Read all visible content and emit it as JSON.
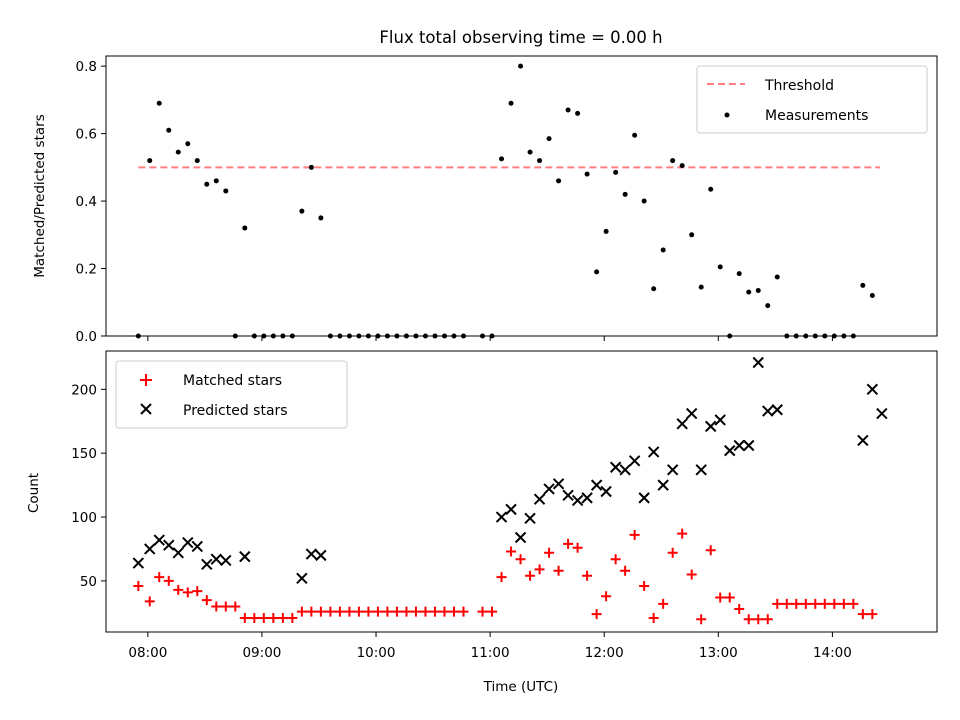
{
  "figure": {
    "title": "Flux total observing time = 0.00 h"
  },
  "chart_data": [
    {
      "type": "scatter",
      "ylabel": "Matched/Predicted stars",
      "xlabel": "",
      "x_unit": "hours UTC",
      "xlim": [
        "07:38",
        "14:55"
      ],
      "ylim": [
        0,
        0.83
      ],
      "y_ticks": [
        0.0,
        0.2,
        0.4,
        0.6,
        0.8
      ],
      "y_tick_labels": [
        "0.0",
        "0.2",
        "0.4",
        "0.6",
        "0.8"
      ],
      "legend_position": "top-right",
      "grid": false,
      "threshold": {
        "name": "Threshold",
        "color": "#ff7f7f",
        "style": "dashed",
        "y": 0.5,
        "x_start": "07:55",
        "x_end": "14:25"
      },
      "series": [
        {
          "name": "Measurements",
          "color": "#000000",
          "marker": "dot",
          "x": [
            "07:55",
            "08:01",
            "08:06",
            "08:11",
            "08:16",
            "08:21",
            "08:26",
            "08:31",
            "08:36",
            "08:41",
            "08:46",
            "08:51",
            "08:56",
            "09:01",
            "09:06",
            "09:11",
            "09:16",
            "09:21",
            "09:26",
            "09:31",
            "09:36",
            "09:41",
            "09:46",
            "09:51",
            "09:56",
            "10:01",
            "10:06",
            "10:11",
            "10:16",
            "10:21",
            "10:26",
            "10:31",
            "10:36",
            "10:41",
            "10:46",
            "10:56",
            "11:01",
            "11:06",
            "11:11",
            "11:16",
            "11:21",
            "11:26",
            "11:31",
            "11:36",
            "11:41",
            "11:46",
            "11:51",
            "11:56",
            "12:01",
            "12:06",
            "12:11",
            "12:16",
            "12:21",
            "12:26",
            "12:31",
            "12:36",
            "12:41",
            "12:46",
            "12:51",
            "12:56",
            "13:01",
            "13:06",
            "13:11",
            "13:16",
            "13:21",
            "13:26",
            "13:31",
            "13:36",
            "13:41",
            "13:46",
            "13:51",
            "13:56",
            "14:01",
            "14:06",
            "14:11",
            "14:16",
            "14:21"
          ],
          "y": [
            0.0,
            0.52,
            0.69,
            0.61,
            0.545,
            0.57,
            0.52,
            0.45,
            0.46,
            0.43,
            0.0,
            0.32,
            0.0,
            0.0,
            0.0,
            0.0,
            0.0,
            0.37,
            0.5,
            0.35,
            0.0,
            0.0,
            0.0,
            0.0,
            0.0,
            0.0,
            0.0,
            0.0,
            0.0,
            0.0,
            0.0,
            0.0,
            0.0,
            0.0,
            0.0,
            0.0,
            0.0,
            0.525,
            0.69,
            0.8,
            0.545,
            0.52,
            0.585,
            0.46,
            0.67,
            0.66,
            0.48,
            0.19,
            0.31,
            0.485,
            0.42,
            0.595,
            0.4,
            0.14,
            0.255,
            0.52,
            0.505,
            0.3,
            0.145,
            0.435,
            0.205,
            0.0,
            0.185,
            0.13,
            0.135,
            0.09,
            0.175,
            0.0,
            0.0,
            0.0,
            0.0,
            0.0,
            0.0,
            0.0,
            0.0,
            0.15,
            0.12
          ]
        }
      ]
    },
    {
      "type": "scatter",
      "xlabel": "Time (UTC)",
      "ylabel": "Count",
      "x_unit": "hours UTC",
      "xlim": [
        "07:38",
        "14:55"
      ],
      "ylim": [
        10,
        230
      ],
      "x_ticks": [
        "08:00",
        "09:00",
        "10:00",
        "11:00",
        "12:00",
        "13:00",
        "14:00"
      ],
      "x_tick_labels": [
        "08:00",
        "09:00",
        "10:00",
        "11:00",
        "12:00",
        "13:00",
        "14:00"
      ],
      "y_ticks": [
        50,
        100,
        150,
        200
      ],
      "y_tick_labels": [
        "50",
        "100",
        "150",
        "200"
      ],
      "legend_position": "top-left",
      "grid": false,
      "series": [
        {
          "name": "Matched stars",
          "color": "#ff0000",
          "marker": "plus",
          "x": [
            "07:55",
            "08:01",
            "08:06",
            "08:11",
            "08:16",
            "08:21",
            "08:26",
            "08:31",
            "08:36",
            "08:41",
            "08:46",
            "08:51",
            "08:56",
            "09:01",
            "09:06",
            "09:11",
            "09:16",
            "09:21",
            "09:26",
            "09:31",
            "09:36",
            "09:41",
            "09:46",
            "09:51",
            "09:56",
            "10:01",
            "10:06",
            "10:11",
            "10:16",
            "10:21",
            "10:26",
            "10:31",
            "10:36",
            "10:41",
            "10:46",
            "10:56",
            "11:01",
            "11:06",
            "11:11",
            "11:16",
            "11:21",
            "11:26",
            "11:31",
            "11:36",
            "11:41",
            "11:46",
            "11:51",
            "11:56",
            "12:01",
            "12:06",
            "12:11",
            "12:16",
            "12:21",
            "12:26",
            "12:31",
            "12:36",
            "12:41",
            "12:46",
            "12:51",
            "12:56",
            "13:01",
            "13:06",
            "13:11",
            "13:16",
            "13:21",
            "13:26",
            "13:31",
            "13:36",
            "13:41",
            "13:46",
            "13:51",
            "13:56",
            "14:01",
            "14:06",
            "14:11",
            "14:16",
            "14:21"
          ],
          "y": [
            46,
            34,
            53,
            50,
            43,
            41,
            42,
            35,
            30,
            30,
            30,
            21,
            21,
            21,
            21,
            21,
            21,
            26,
            26,
            26,
            26,
            26,
            26,
            26,
            26,
            26,
            26,
            26,
            26,
            26,
            26,
            26,
            26,
            26,
            26,
            26,
            26,
            53,
            73,
            67,
            54,
            59,
            72,
            58,
            79,
            76,
            54,
            24,
            38,
            67,
            58,
            86,
            46,
            21,
            32,
            72,
            87,
            55,
            20,
            74,
            37,
            37,
            28,
            20,
            20,
            20,
            32,
            32,
            32,
            32,
            32,
            32,
            32,
            32,
            32,
            24,
            24
          ]
        },
        {
          "name": "Predicted stars",
          "color": "#000000",
          "marker": "x",
          "x": [
            "07:55",
            "08:01",
            "08:06",
            "08:11",
            "08:16",
            "08:21",
            "08:26",
            "08:31",
            "08:36",
            "08:41",
            "08:51",
            "09:21",
            "09:26",
            "09:31",
            "11:06",
            "11:11",
            "11:16",
            "11:21",
            "11:26",
            "11:31",
            "11:36",
            "11:41",
            "11:46",
            "11:51",
            "11:56",
            "12:01",
            "12:06",
            "12:11",
            "12:16",
            "12:21",
            "12:26",
            "12:31",
            "12:36",
            "12:41",
            "12:46",
            "12:51",
            "12:56",
            "13:01",
            "13:06",
            "13:11",
            "13:16",
            "13:21",
            "13:26",
            "13:31",
            "14:16",
            "14:21",
            "14:26"
          ],
          "y": [
            64,
            75,
            82,
            78,
            72,
            80,
            77,
            63,
            67,
            66,
            69,
            52,
            71,
            70,
            100,
            106,
            84,
            99,
            114,
            122,
            126,
            117,
            113,
            115,
            125,
            120,
            139,
            137,
            144,
            115,
            151,
            125,
            137,
            173,
            181,
            137,
            171,
            176,
            152,
            156,
            156,
            221,
            183,
            184,
            160,
            200,
            181
          ]
        }
      ]
    }
  ]
}
